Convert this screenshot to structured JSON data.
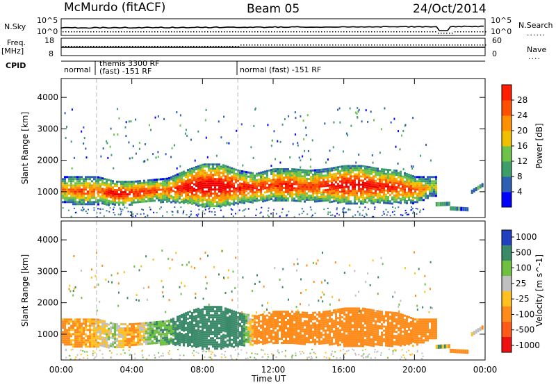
{
  "header": {
    "station": "McMurdo (fitACF)",
    "beam": "Beam 05",
    "date": "24/Oct/2014"
  },
  "top_panels": {
    "nsky_label": "N.Sky",
    "nsky_ticks": [
      "10^5",
      "10^0"
    ],
    "nsearch_label": "N.Search",
    "nsearch_ticks": [
      "10^5",
      "10^0"
    ],
    "freq_label": "Freq.",
    "freq_unit": "[MHz]",
    "freq_ticks": [
      "18",
      "8"
    ],
    "nave_label": "Nave",
    "nave_ticks": [
      "60",
      "0"
    ],
    "cpid_label": "CPID",
    "cpid_segments": [
      {
        "label": "normal",
        "start_hour": 0.0,
        "end_hour": 2.0
      },
      {
        "label": "themis 3300 RF",
        "label2": "(fast) -151 RF",
        "start_hour": 2.0,
        "end_hour": 10.0
      },
      {
        "label": "normal (fast) -151 RF",
        "start_hour": 10.0,
        "end_hour": 24.0
      }
    ]
  },
  "colors": {
    "frame": "#000000",
    "mode_change_line": "#bbbbbb",
    "power_scale": [
      "#0000ff",
      "#2e5fb5",
      "#3e9e6a",
      "#6dc24a",
      "#f0c000",
      "#ff9000",
      "#ff5000",
      "#ff1e00",
      "#ee0000"
    ],
    "velocity_scale": [
      "#2040c0",
      "#3a8a6a",
      "#70c040",
      "#c0c0c0",
      "#ffc020",
      "#ff8c1a",
      "#ff5a1a",
      "#ee1010"
    ]
  },
  "chart_data": [
    {
      "type": "heatmap",
      "name": "power",
      "ylabel": "Slant Range [km]",
      "xlabel": "Time UT",
      "xlim": [
        0,
        24
      ],
      "ylim": [
        180,
        4600
      ],
      "yticks": [
        "1000",
        "2000",
        "3000",
        "4000"
      ],
      "xticks": [
        "00:00",
        "04:00",
        "08:00",
        "12:00",
        "16:00",
        "20:00",
        "00:00"
      ],
      "colorbar": {
        "label": "Power [dB]",
        "ticks": [
          "4",
          "8",
          "12",
          "16",
          "20",
          "24",
          "28"
        ],
        "range": [
          0,
          30
        ]
      },
      "mode_change_hours": [
        2.0,
        10.0
      ],
      "main_band": {
        "time_hours": [
          0.0,
          1.0,
          2.0,
          3.0,
          4.0,
          5.0,
          6.0,
          7.0,
          8.0,
          9.0,
          10.0,
          11.0,
          12.0,
          13.0,
          14.0,
          15.0,
          16.0,
          17.0,
          18.0,
          19.0,
          20.0,
          21.0
        ],
        "range_low_km": [
          700,
          600,
          620,
          600,
          620,
          700,
          700,
          650,
          550,
          550,
          650,
          700,
          750,
          700,
          720,
          700,
          650,
          650,
          650,
          650,
          650,
          900
        ],
        "range_high_km": [
          1500,
          1500,
          1500,
          1350,
          1350,
          1400,
          1450,
          1700,
          1900,
          1900,
          1700,
          1600,
          1750,
          1750,
          1700,
          1750,
          1850,
          1850,
          1750,
          1700,
          1500,
          1500
        ],
        "peak_power_db": [
          18,
          22,
          20,
          28,
          26,
          24,
          20,
          28,
          30,
          30,
          26,
          24,
          24,
          26,
          22,
          26,
          28,
          28,
          26,
          24,
          22,
          14
        ]
      }
    },
    {
      "type": "heatmap",
      "name": "velocity",
      "ylabel": "Slant Range [km]",
      "xlabel": "Time UT",
      "xlim": [
        0,
        24
      ],
      "ylim": [
        180,
        4600
      ],
      "yticks": [
        "1000",
        "2000",
        "3000",
        "4000"
      ],
      "xticks": [
        "00:00",
        "04:00",
        "08:00",
        "12:00",
        "16:00",
        "20:00",
        "00:00"
      ],
      "colorbar": {
        "label": "Velocity [m s^-1]",
        "ticks": [
          "1000",
          "500",
          "100",
          "25",
          "-25",
          "-100",
          "-500",
          "-1000"
        ]
      },
      "mode_change_hours": [
        2.0,
        10.0
      ],
      "main_band": {
        "time_hours": [
          0.0,
          1.0,
          2.0,
          3.0,
          4.0,
          5.0,
          6.0,
          7.0,
          8.0,
          9.0,
          10.0,
          11.0,
          12.0,
          13.0,
          14.0,
          15.0,
          16.0,
          17.0,
          18.0,
          19.0,
          20.0,
          21.0
        ],
        "range_low_km": [
          700,
          600,
          620,
          600,
          620,
          700,
          700,
          650,
          550,
          550,
          650,
          700,
          750,
          700,
          720,
          700,
          650,
          650,
          650,
          650,
          650,
          900
        ],
        "range_high_km": [
          1500,
          1500,
          1500,
          1350,
          1350,
          1400,
          1450,
          1700,
          1900,
          1900,
          1700,
          1600,
          1750,
          1750,
          1700,
          1750,
          1850,
          1850,
          1750,
          1700,
          1500,
          1500
        ],
        "velocity_ms": [
          -150,
          -120,
          -60,
          30,
          -140,
          60,
          80,
          250,
          300,
          280,
          260,
          -200,
          -300,
          -250,
          -220,
          -260,
          -300,
          -280,
          -250,
          -200,
          -150,
          -180
        ]
      }
    }
  ]
}
